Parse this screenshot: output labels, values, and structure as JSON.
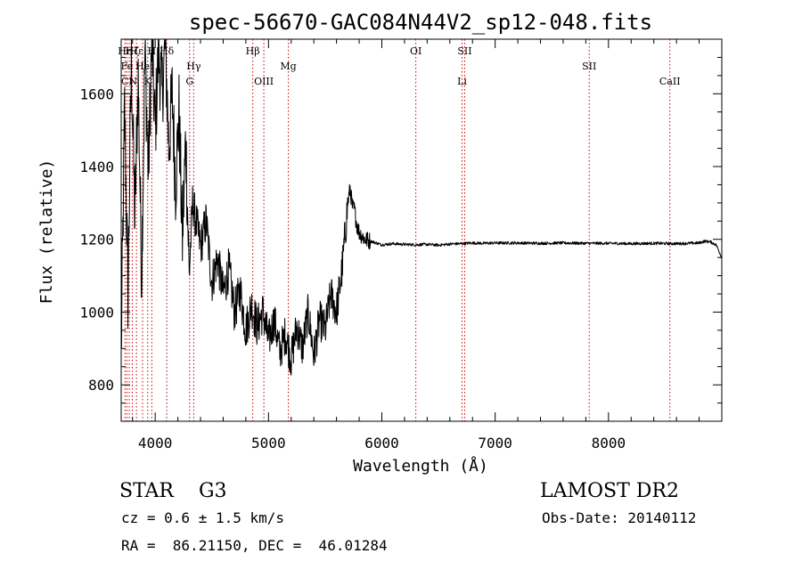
{
  "chart_data": {
    "type": "line",
    "title": "spec-56670-GAC084N44V2_sp12-048.fits",
    "xlabel": "Wavelength (Å)",
    "ylabel": "Flux (relative)",
    "xlim": [
      3700,
      9000
    ],
    "ylim": [
      700,
      1750
    ],
    "x_ticks": [
      4000,
      5000,
      6000,
      7000,
      8000
    ],
    "x_tick_labels": [
      "4000",
      "5000",
      "6000",
      "7000",
      "8000"
    ],
    "y_ticks": [
      800,
      1000,
      1200,
      1400,
      1600
    ],
    "y_tick_labels": [
      "800",
      "1000",
      "1200",
      "1400",
      "1600"
    ],
    "grid": false,
    "line_color": "#000000",
    "marker_color": "#cc0000",
    "series": [
      {
        "x": [
          3700,
          3730,
          3760,
          3790,
          3820,
          3850,
          3880,
          3910,
          3940,
          3970,
          4000,
          4030,
          4060,
          4090,
          4120,
          4150,
          4180,
          4210,
          4240,
          4270,
          4300,
          4330,
          4360,
          4400,
          4450,
          4500,
          4550,
          4600,
          4650,
          4700,
          4750,
          4800,
          4850,
          4900,
          4950,
          5000,
          5050,
          5100,
          5150,
          5200,
          5250,
          5300,
          5350,
          5400,
          5450,
          5500,
          5550,
          5600,
          5650,
          5700,
          5720,
          5740,
          5760,
          5780,
          5800,
          5850,
          5900,
          5950,
          6000,
          6100,
          6200,
          6300,
          6400,
          6500,
          6600,
          6700,
          6800,
          6900,
          7000,
          7200,
          7400,
          7600,
          7800,
          8000,
          8200,
          8400,
          8600,
          8800,
          8850,
          8900,
          8950,
          9000
        ],
        "y": [
          880,
          1560,
          1050,
          1700,
          1250,
          1650,
          1100,
          1720,
          1380,
          1750,
          1500,
          1720,
          1600,
          1740,
          1450,
          1600,
          1350,
          1550,
          1200,
          1480,
          1100,
          1300,
          1250,
          1180,
          1250,
          1080,
          1150,
          1050,
          1120,
          1000,
          1060,
          950,
          1020,
          960,
          1000,
          920,
          980,
          890,
          940,
          870,
          960,
          900,
          1000,
          880,
          980,
          950,
          1050,
          1000,
          1120,
          1300,
          1340,
          1290,
          1280,
          1240,
          1220,
          1200,
          1195,
          1190,
          1185,
          1188,
          1186,
          1185,
          1186,
          1184,
          1187,
          1188,
          1190,
          1189,
          1190,
          1190,
          1189,
          1190,
          1189,
          1189,
          1188,
          1189,
          1188,
          1190,
          1195,
          1193,
          1185,
          1150
        ]
      }
    ],
    "line_markers": [
      {
        "x": 3734,
        "label": "Hη",
        "row": 1
      },
      {
        "x": 3750,
        "label": "Fe",
        "row": 2
      },
      {
        "x": 3771,
        "label": "CN",
        "row": 3
      },
      {
        "x": 3798,
        "label": "Hζ",
        "row": 1
      },
      {
        "x": 3835,
        "label": "Hε",
        "row": 1
      },
      {
        "x": 3889,
        "label": "He",
        "row": 2
      },
      {
        "x": 3934,
        "label": "K",
        "row": 3
      },
      {
        "x": 3970,
        "label": "H",
        "row": 1
      },
      {
        "x": 4102,
        "label": "Hδ",
        "row": 1
      },
      {
        "x": 4304,
        "label": "G",
        "row": 3
      },
      {
        "x": 4340,
        "label": "Hγ",
        "row": 2
      },
      {
        "x": 4861,
        "label": "Hβ",
        "row": 1
      },
      {
        "x": 4959,
        "label": "OIII",
        "row": 3
      },
      {
        "x": 5175,
        "label": "Mg",
        "row": 2
      },
      {
        "x": 6300,
        "label": "OI",
        "row": 1
      },
      {
        "x": 6708,
        "label": "Li",
        "row": 3
      },
      {
        "x": 6731,
        "label": "SII",
        "row": 1
      },
      {
        "x": 7830,
        "label": "SII",
        "row": 2
      },
      {
        "x": 8542,
        "label": "CaII",
        "row": 3
      }
    ]
  },
  "info": {
    "star_class": "STAR    G3",
    "survey": "LAMOST DR2",
    "cz": "cz = 0.6 ± 1.5 km/s",
    "obs_date": "Obs-Date: 20140112",
    "coords": "RA =  86.21150, DEC =  46.01284"
  }
}
